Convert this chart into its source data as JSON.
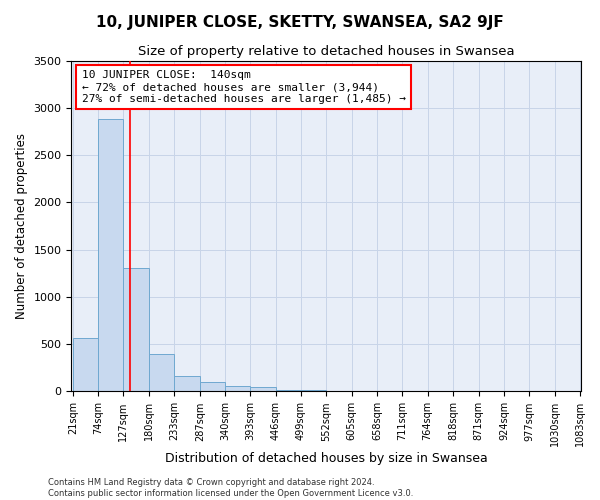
{
  "title": "10, JUNIPER CLOSE, SKETTY, SWANSEA, SA2 9JF",
  "subtitle": "Size of property relative to detached houses in Swansea",
  "xlabel": "Distribution of detached houses by size in Swansea",
  "ylabel": "Number of detached properties",
  "bin_edges": [
    21,
    74,
    127,
    180,
    233,
    287,
    340,
    393,
    446,
    499,
    552,
    605,
    658,
    711,
    764,
    818,
    871,
    924,
    977,
    1030,
    1083
  ],
  "bar_heights": [
    570,
    2880,
    1310,
    400,
    160,
    95,
    60,
    45,
    20,
    15,
    10,
    8,
    6,
    5,
    4,
    3,
    3,
    2,
    2,
    2
  ],
  "bar_color": "#c8d9ef",
  "bar_edge_color": "#6fa8d0",
  "grid_color": "#c8d4e8",
  "background_color": "#e8eef8",
  "annotation_text": "10 JUNIPER CLOSE:  140sqm\n← 72% of detached houses are smaller (3,944)\n27% of semi-detached houses are larger (1,485) →",
  "annotation_box_color": "#ffffff",
  "annotation_border_color": "red",
  "vline_x": 140,
  "vline_color": "red",
  "ylim": [
    0,
    3500
  ],
  "yticks": [
    0,
    500,
    1000,
    1500,
    2000,
    2500,
    3000,
    3500
  ],
  "footer_line1": "Contains HM Land Registry data © Crown copyright and database right 2024.",
  "footer_line2": "Contains public sector information licensed under the Open Government Licence v3.0.",
  "title_fontsize": 11,
  "subtitle_fontsize": 9.5,
  "tick_fontsize": 7,
  "ylabel_fontsize": 8.5,
  "xlabel_fontsize": 9,
  "annotation_fontsize": 8,
  "footer_fontsize": 6
}
